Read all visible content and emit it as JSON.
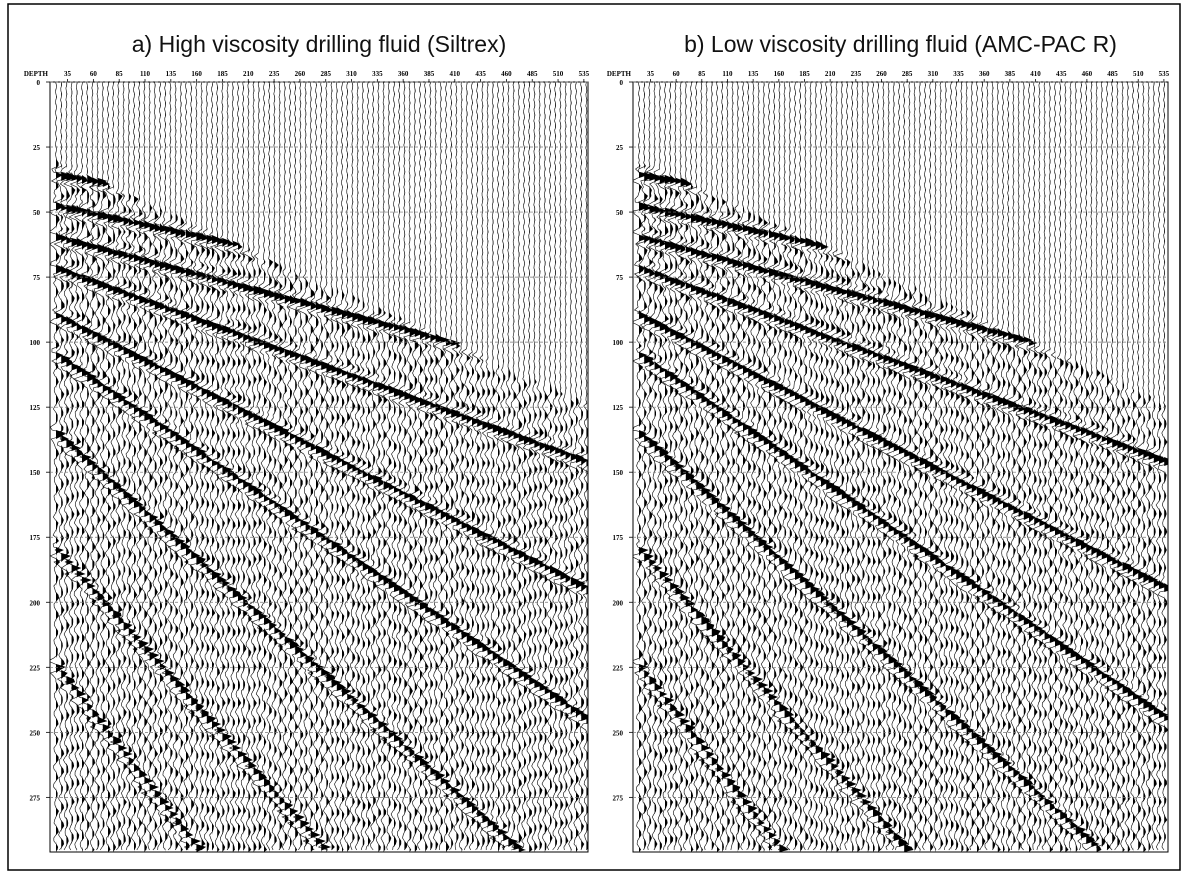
{
  "chart_data": [
    {
      "type": "wiggle",
      "title": "a) High viscosity drilling fluid (Siltrex)",
      "ylabel": "DEPTH",
      "xlim": [
        18,
        539
      ],
      "xticks": [
        35,
        60,
        85,
        110,
        135,
        160,
        185,
        210,
        235,
        260,
        285,
        310,
        335,
        360,
        385,
        410,
        435,
        460,
        485,
        510,
        535
      ],
      "ylim": [
        0,
        296
      ],
      "yticks": [
        0,
        25,
        50,
        75,
        100,
        125,
        150,
        175,
        200,
        225,
        250,
        275
      ],
      "grid": true
    },
    {
      "type": "wiggle",
      "title": "b) Low viscosity drilling fluid (AMC-PAC R)",
      "ylabel": "DEPTH",
      "xlim": [
        18,
        539
      ],
      "xticks": [
        35,
        60,
        85,
        110,
        135,
        160,
        185,
        210,
        235,
        260,
        285,
        310,
        335,
        360,
        385,
        410,
        435,
        460,
        485,
        510,
        535
      ],
      "ylim": [
        0,
        296
      ],
      "yticks": [
        0,
        25,
        50,
        75,
        100,
        125,
        150,
        175,
        200,
        225,
        250,
        275
      ],
      "grid": true
    }
  ]
}
